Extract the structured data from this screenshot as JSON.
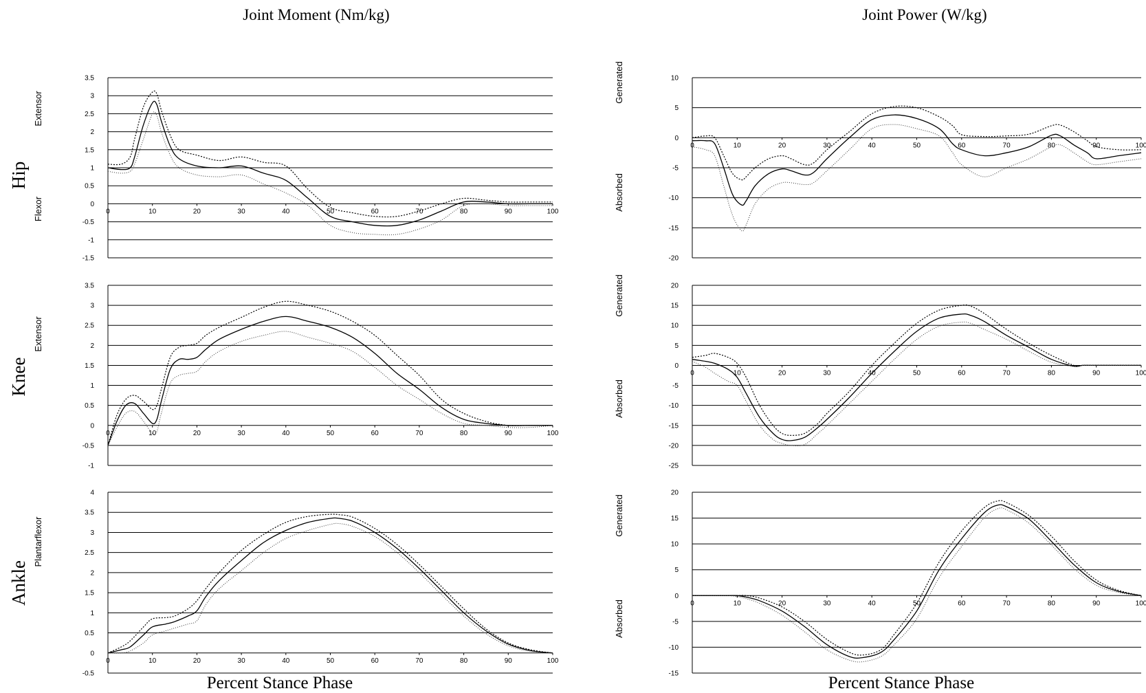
{
  "titles": {
    "moment": "Joint Moment (Nm/kg)",
    "power": "Joint Power (W/kg)"
  },
  "xlabel": "Percent Stance Phase",
  "joints": [
    "Hip",
    "Knee",
    "Ankle"
  ],
  "chart_data": [
    {
      "type": "line",
      "id": "hip-moment",
      "joint": "Hip",
      "column": "moment",
      "upper_label": "Extensor",
      "lower_label": "Flexor",
      "ylim": [
        -1.5,
        3.5
      ],
      "yticks": [
        3.5,
        3,
        2.5,
        2,
        1.5,
        1,
        0.5,
        0,
        -0.5,
        -1,
        -1.5
      ],
      "xlim": [
        0,
        100
      ],
      "xticks": [
        0,
        10,
        20,
        30,
        40,
        50,
        60,
        70,
        80,
        90,
        100
      ],
      "x": [
        0,
        3,
        5,
        6,
        8,
        10,
        11,
        12,
        14,
        16,
        20,
        25,
        30,
        35,
        40,
        45,
        50,
        55,
        60,
        65,
        70,
        75,
        80,
        85,
        90,
        95,
        100
      ],
      "series": [
        {
          "values": [
            1.0,
            0.95,
            1.0,
            1.3,
            2.2,
            2.8,
            2.75,
            2.3,
            1.6,
            1.25,
            1.05,
            1.0,
            1.05,
            0.85,
            0.65,
            0.15,
            -0.35,
            -0.5,
            -0.6,
            -0.6,
            -0.45,
            -0.2,
            0.05,
            0.05,
            0.0,
            0.0,
            0.0
          ]
        },
        {
          "values": [
            1.1,
            1.1,
            1.3,
            1.8,
            2.7,
            3.1,
            3.05,
            2.6,
            1.9,
            1.5,
            1.35,
            1.2,
            1.3,
            1.15,
            1.05,
            0.4,
            -0.1,
            -0.25,
            -0.35,
            -0.35,
            -0.2,
            0.0,
            0.15,
            0.1,
            0.05,
            0.05,
            0.05
          ]
        },
        {
          "values": [
            0.9,
            0.85,
            0.9,
            1.1,
            1.8,
            2.5,
            2.45,
            2.0,
            1.35,
            1.0,
            0.8,
            0.75,
            0.8,
            0.55,
            0.3,
            -0.05,
            -0.6,
            -0.8,
            -0.85,
            -0.85,
            -0.7,
            -0.45,
            -0.05,
            0.0,
            -0.05,
            -0.05,
            -0.05
          ]
        }
      ]
    },
    {
      "type": "line",
      "id": "hip-power",
      "joint": "Hip",
      "column": "power",
      "upper_label": "Generated",
      "lower_label": "Absorbed",
      "ylim": [
        -20,
        10
      ],
      "yticks": [
        10,
        5,
        0,
        -5,
        -10,
        -15,
        -20
      ],
      "xlim": [
        0,
        100
      ],
      "xticks": [
        0,
        10,
        20,
        30,
        40,
        50,
        60,
        70,
        80,
        90,
        100
      ],
      "x": [
        0,
        3,
        5,
        7,
        9,
        11,
        12,
        14,
        17,
        20,
        22,
        25,
        27,
        30,
        35,
        40,
        45,
        50,
        55,
        58,
        60,
        65,
        70,
        75,
        80,
        82,
        85,
        88,
        90,
        95,
        100
      ],
      "series": [
        {
          "values": [
            -0.5,
            -0.5,
            -1.0,
            -5.0,
            -9.5,
            -11.2,
            -10.5,
            -8.0,
            -6.0,
            -5.2,
            -5.5,
            -6.2,
            -5.8,
            -3.5,
            0.0,
            3.0,
            3.8,
            3.2,
            1.5,
            -1.0,
            -2.0,
            -3.0,
            -2.5,
            -1.5,
            0.4,
            0.3,
            -1.2,
            -2.5,
            -3.5,
            -3.0,
            -2.5
          ]
        },
        {
          "values": [
            0.0,
            0.3,
            0.0,
            -3.0,
            -6.0,
            -7.0,
            -6.5,
            -5.0,
            -3.5,
            -3.0,
            -3.5,
            -4.5,
            -4.2,
            -2.0,
            1.0,
            4.0,
            5.2,
            5.0,
            3.5,
            2.0,
            0.5,
            0.2,
            0.3,
            0.6,
            2.0,
            2.1,
            1.0,
            -0.5,
            -1.5,
            -2.0,
            -2.0
          ]
        },
        {
          "values": [
            -1.5,
            -2.0,
            -3.0,
            -8.0,
            -13.0,
            -15.5,
            -14.5,
            -11.0,
            -8.5,
            -7.5,
            -7.5,
            -7.8,
            -7.5,
            -5.5,
            -2.0,
            1.5,
            2.2,
            1.5,
            0.3,
            -2.5,
            -4.5,
            -6.5,
            -5.0,
            -3.5,
            -1.5,
            -1.2,
            -2.5,
            -4.0,
            -4.5,
            -4.0,
            -3.5
          ]
        }
      ]
    },
    {
      "type": "line",
      "id": "knee-moment",
      "joint": "Knee",
      "column": "moment",
      "upper_label": "Extensor",
      "lower_label": "",
      "ylim": [
        -1,
        3.5
      ],
      "yticks": [
        3.5,
        3,
        2.5,
        2,
        1.5,
        1,
        0.5,
        0,
        -0.5,
        -1
      ],
      "xlim": [
        0,
        100
      ],
      "xticks": [
        0,
        10,
        20,
        30,
        40,
        50,
        60,
        70,
        80,
        90,
        100
      ],
      "x": [
        0,
        2,
        4,
        6,
        8,
        10,
        11,
        12,
        14,
        16,
        18,
        20,
        22,
        25,
        30,
        35,
        40,
        45,
        50,
        55,
        60,
        65,
        70,
        75,
        80,
        85,
        90,
        95,
        100
      ],
      "series": [
        {
          "values": [
            -0.5,
            0.1,
            0.5,
            0.55,
            0.3,
            0.05,
            0.15,
            0.6,
            1.4,
            1.65,
            1.65,
            1.7,
            1.9,
            2.15,
            2.4,
            2.6,
            2.72,
            2.6,
            2.45,
            2.2,
            1.8,
            1.3,
            0.9,
            0.45,
            0.15,
            0.05,
            0.0,
            0.0,
            0.0
          ]
        },
        {
          "values": [
            -0.5,
            0.25,
            0.65,
            0.75,
            0.6,
            0.4,
            0.5,
            0.9,
            1.7,
            1.95,
            2.0,
            2.05,
            2.25,
            2.45,
            2.7,
            2.95,
            3.1,
            3.0,
            2.85,
            2.6,
            2.25,
            1.75,
            1.25,
            0.65,
            0.3,
            0.1,
            0.0,
            0.0,
            0.0
          ]
        },
        {
          "values": [
            -0.5,
            -0.05,
            0.3,
            0.35,
            0.1,
            -0.2,
            -0.15,
            0.3,
            1.05,
            1.25,
            1.3,
            1.35,
            1.6,
            1.85,
            2.1,
            2.25,
            2.35,
            2.2,
            2.05,
            1.85,
            1.45,
            1.0,
            0.65,
            0.3,
            0.05,
            0.0,
            -0.05,
            -0.05,
            0.0
          ]
        }
      ]
    },
    {
      "type": "line",
      "id": "knee-power",
      "joint": "Knee",
      "column": "power",
      "upper_label": "Generated",
      "lower_label": "Absorbed",
      "ylim": [
        -25,
        20
      ],
      "yticks": [
        20,
        15,
        10,
        5,
        0,
        -5,
        -10,
        -15,
        -20,
        -25
      ],
      "xlim": [
        0,
        100
      ],
      "xticks": [
        0,
        10,
        20,
        30,
        40,
        50,
        60,
        70,
        80,
        90,
        100
      ],
      "x": [
        0,
        3,
        5,
        8,
        10,
        12,
        15,
        18,
        20,
        22,
        25,
        28,
        30,
        35,
        40,
        45,
        50,
        55,
        60,
        62,
        65,
        70,
        75,
        80,
        85,
        87,
        90,
        95,
        100
      ],
      "series": [
        {
          "values": [
            1.5,
            1.0,
            0.5,
            -1.0,
            -3.0,
            -7.0,
            -13.0,
            -17.0,
            -18.5,
            -18.8,
            -18.0,
            -15.5,
            -13.5,
            -8.0,
            -2.0,
            3.5,
            8.5,
            11.8,
            12.8,
            12.5,
            11.0,
            7.5,
            4.5,
            1.5,
            -0.2,
            0.0,
            0.0,
            0.0,
            0.0
          ]
        },
        {
          "values": [
            2.0,
            2.5,
            3.0,
            2.0,
            0.5,
            -3.0,
            -10.0,
            -15.0,
            -17.0,
            -17.5,
            -17.0,
            -14.5,
            -12.0,
            -6.5,
            0.0,
            5.5,
            10.5,
            13.8,
            15.0,
            14.8,
            13.0,
            9.0,
            5.5,
            2.5,
            0.0,
            0.0,
            0.0,
            0.0,
            0.0
          ]
        },
        {
          "values": [
            1.0,
            -0.5,
            -2.0,
            -4.0,
            -5.0,
            -9.0,
            -15.0,
            -18.5,
            -19.5,
            -20.0,
            -19.8,
            -17.0,
            -15.0,
            -9.5,
            -4.0,
            1.5,
            6.5,
            9.8,
            10.8,
            10.5,
            9.0,
            6.5,
            3.5,
            0.8,
            -0.3,
            0.0,
            0.0,
            0.0,
            0.0
          ]
        }
      ]
    },
    {
      "type": "line",
      "id": "ankle-moment",
      "joint": "Ankle",
      "column": "moment",
      "upper_label": "Plantarflexor",
      "lower_label": "",
      "ylim": [
        -0.5,
        4
      ],
      "yticks": [
        4,
        3.5,
        3,
        2.5,
        2,
        1.5,
        1,
        0.5,
        0,
        -0.5
      ],
      "xlim": [
        0,
        100
      ],
      "xticks": [
        0,
        10,
        20,
        30,
        40,
        50,
        60,
        70,
        80,
        90,
        100
      ],
      "x": [
        0,
        3,
        5,
        8,
        10,
        13,
        15,
        18,
        20,
        22,
        25,
        30,
        35,
        40,
        45,
        50,
        52,
        55,
        60,
        65,
        70,
        75,
        80,
        85,
        90,
        95,
        100
      ],
      "series": [
        {
          "values": [
            0.0,
            0.08,
            0.15,
            0.45,
            0.65,
            0.72,
            0.78,
            0.92,
            1.05,
            1.4,
            1.8,
            2.3,
            2.75,
            3.05,
            3.25,
            3.35,
            3.35,
            3.28,
            3.0,
            2.6,
            2.1,
            1.55,
            1.0,
            0.55,
            0.22,
            0.06,
            0.0
          ]
        },
        {
          "values": [
            0.0,
            0.15,
            0.3,
            0.65,
            0.85,
            0.88,
            0.92,
            1.1,
            1.3,
            1.6,
            2.0,
            2.55,
            2.95,
            3.25,
            3.4,
            3.45,
            3.44,
            3.38,
            3.1,
            2.7,
            2.2,
            1.65,
            1.1,
            0.6,
            0.25,
            0.08,
            0.0
          ]
        },
        {
          "values": [
            0.0,
            0.0,
            0.05,
            0.25,
            0.45,
            0.55,
            0.62,
            0.72,
            0.8,
            1.2,
            1.6,
            2.05,
            2.5,
            2.85,
            3.05,
            3.2,
            3.22,
            3.15,
            2.9,
            2.5,
            2.0,
            1.45,
            0.92,
            0.48,
            0.18,
            0.04,
            0.0
          ]
        }
      ]
    },
    {
      "type": "line",
      "id": "ankle-power",
      "joint": "Ankle",
      "column": "power",
      "upper_label": "Generated",
      "lower_label": "Absorbed",
      "ylim": [
        -15,
        20
      ],
      "yticks": [
        20,
        15,
        10,
        5,
        0,
        -5,
        -10,
        -15
      ],
      "xlim": [
        0,
        100
      ],
      "xticks": [
        0,
        10,
        20,
        30,
        40,
        50,
        60,
        70,
        80,
        90,
        100
      ],
      "x": [
        0,
        5,
        8,
        10,
        12,
        15,
        20,
        25,
        30,
        35,
        38,
        42,
        45,
        50,
        55,
        60,
        65,
        68,
        70,
        75,
        80,
        85,
        90,
        95,
        100
      ],
      "series": [
        {
          "values": [
            0.0,
            0.0,
            0.0,
            0.0,
            -0.3,
            -1.0,
            -3.0,
            -6.0,
            -9.5,
            -11.8,
            -12.0,
            -11.0,
            -8.5,
            -3.0,
            5.0,
            11.0,
            16.0,
            17.5,
            17.2,
            14.8,
            10.5,
            6.0,
            2.5,
            0.8,
            0.0
          ]
        },
        {
          "values": [
            0.0,
            0.0,
            0.0,
            0.0,
            0.0,
            -0.5,
            -2.2,
            -5.0,
            -8.5,
            -11.0,
            -11.5,
            -10.5,
            -7.5,
            -1.5,
            6.5,
            12.5,
            17.0,
            18.3,
            18.0,
            15.5,
            11.5,
            6.8,
            3.0,
            1.0,
            0.0
          ]
        },
        {
          "values": [
            0.0,
            0.0,
            0.0,
            -0.2,
            -0.6,
            -1.5,
            -3.8,
            -7.0,
            -10.5,
            -12.5,
            -12.8,
            -11.8,
            -9.5,
            -4.5,
            3.5,
            9.5,
            15.0,
            16.8,
            16.6,
            14.0,
            9.8,
            5.3,
            2.0,
            0.6,
            0.0
          ]
        }
      ]
    }
  ]
}
